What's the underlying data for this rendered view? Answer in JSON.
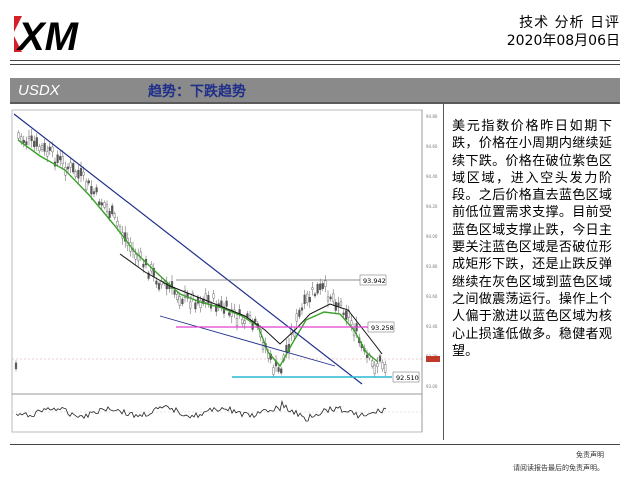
{
  "brand": {
    "logo_text": "XM",
    "logo_color": "#000000",
    "accent": "#d42027"
  },
  "header": {
    "title": "技术 分析 日评",
    "date": "2020年08月06日"
  },
  "bar": {
    "symbol": "USDX",
    "trend": "趋势：下跌趋势",
    "bg": "#8a8a8a"
  },
  "chart": {
    "levels": {
      "upper": "93.942",
      "middle": "93.258",
      "lower": "92.510"
    },
    "colors": {
      "candle": "#555555",
      "ma_green": "#3aa02a",
      "ma_black": "#111111",
      "trendline": "#1f2f8a",
      "zone_purple": "#e040d0",
      "zone_blue": "#29b8d6"
    }
  },
  "commentary": "美元指数价格昨日如期下跌，价格在小周期内继续延续下跌。价格在破位紫色区域区域，进入空头发力阶段。之后价格直去蓝色区域前低位置需求支撑。目前受蓝色区域支撑止跌，今日主要关注蓝色区域是否破位形成矩形下跌，还是止跌反弹继续在灰色区域到蓝色区域之间做震荡运行。操作上个人偏于激进以蓝色区域为核心止损逢低做多。稳健者观望。",
  "disclaimer": {
    "line1": "免责声明",
    "line2": "请阅读报告最后的免责声明。"
  }
}
